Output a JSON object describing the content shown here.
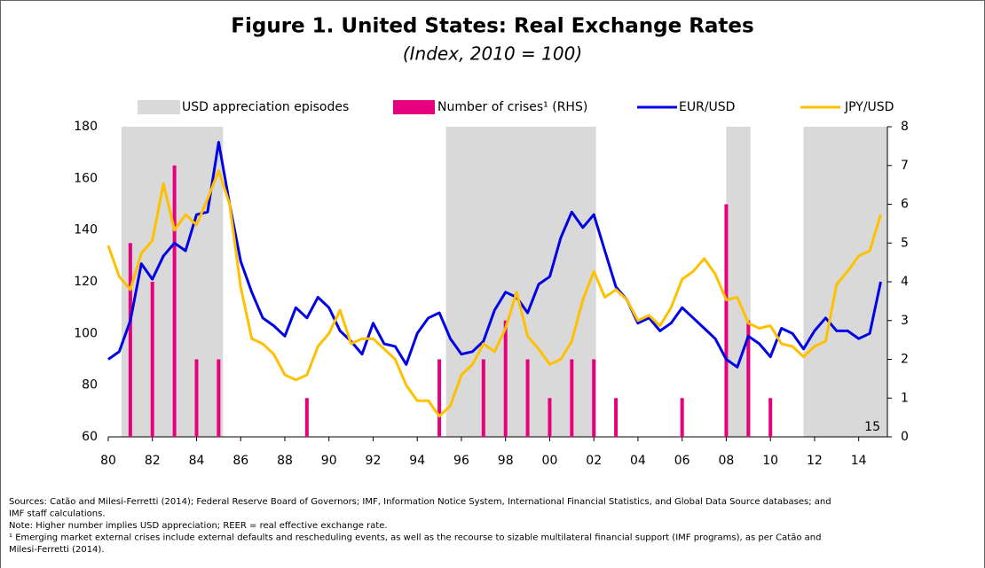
{
  "chart_data": {
    "type": "line",
    "title": "Figure 1. United States: Real Exchange Rates",
    "subtitle": "(Index, 2010 = 100)",
    "shaded_name": "USD appreciation episodes",
    "shaded": [
      [
        1980.6,
        1985.2
      ],
      [
        1995.3,
        2002.1
      ],
      [
        2008.0,
        2009.1
      ],
      [
        2011.5,
        2015.3
      ]
    ],
    "shaded_color": "#d9d9d9",
    "annotation": "15",
    "xlim": [
      1980,
      2015.3
    ],
    "xticks": [
      {
        "value": 1980,
        "label": "80"
      },
      {
        "value": 1982,
        "label": "82"
      },
      {
        "value": 1984,
        "label": "84"
      },
      {
        "value": 1986,
        "label": "86"
      },
      {
        "value": 1988,
        "label": "88"
      },
      {
        "value": 1990,
        "label": "90"
      },
      {
        "value": 1992,
        "label": "92"
      },
      {
        "value": 1994,
        "label": "94"
      },
      {
        "value": 1996,
        "label": "96"
      },
      {
        "value": 1998,
        "label": "98"
      },
      {
        "value": 2000,
        "label": "00"
      },
      {
        "value": 2002,
        "label": "02"
      },
      {
        "value": 2004,
        "label": "04"
      },
      {
        "value": 2006,
        "label": "06"
      },
      {
        "value": 2008,
        "label": "08"
      },
      {
        "value": 2010,
        "label": "10"
      },
      {
        "value": 2012,
        "label": "12"
      },
      {
        "value": 2014,
        "label": "14"
      }
    ],
    "ylim": [
      60,
      180
    ],
    "yticks": [
      60,
      80,
      100,
      120,
      140,
      160,
      180
    ],
    "y2lim": [
      0,
      8
    ],
    "y2ticks": [
      0,
      1,
      2,
      3,
      4,
      5,
      6,
      7,
      8
    ],
    "series": [
      {
        "name": "Number of crises¹ (RHS)",
        "type": "bar",
        "axis": "y2",
        "color": "#e6007e",
        "x": [
          1981,
          1982,
          1983,
          1984,
          1985,
          1989,
          1995,
          1997,
          1998,
          1999,
          2000,
          2001,
          2002,
          2003,
          2006,
          2008,
          2009,
          2010
        ],
        "values": [
          5,
          4,
          7,
          2,
          2,
          1,
          2,
          2,
          3,
          2,
          1,
          2,
          2,
          1,
          1,
          6,
          3,
          1
        ]
      },
      {
        "name": "EUR/USD",
        "type": "line",
        "color": "#0000e6",
        "x": [
          1980,
          1980.5,
          1981,
          1981.5,
          1982,
          1982.5,
          1983,
          1983.5,
          1984,
          1984.5,
          1985,
          1985.5,
          1986,
          1986.5,
          1987,
          1987.5,
          1988,
          1988.5,
          1989,
          1989.5,
          1990,
          1990.5,
          1991,
          1991.5,
          1992,
          1992.5,
          1993,
          1993.5,
          1994,
          1994.5,
          1995,
          1995.5,
          1996,
          1996.5,
          1997,
          1997.5,
          1998,
          1998.5,
          1999,
          1999.5,
          2000,
          2000.5,
          2001,
          2001.5,
          2002,
          2002.5,
          2003,
          2003.5,
          2004,
          2004.5,
          2005,
          2005.5,
          2006,
          2006.5,
          2007,
          2007.5,
          2008,
          2008.5,
          2009,
          2009.5,
          2010,
          2010.5,
          2011,
          2011.5,
          2012,
          2012.5,
          2013,
          2013.5,
          2014,
          2014.5,
          2015
        ],
        "values": [
          90,
          93,
          105,
          127,
          121,
          130,
          135,
          132,
          146,
          147,
          174,
          150,
          128,
          116,
          106,
          103,
          99,
          110,
          106,
          114,
          110,
          101,
          97,
          92,
          104,
          96,
          95,
          88,
          100,
          106,
          108,
          98,
          92,
          93,
          97,
          109,
          116,
          114,
          108,
          119,
          122,
          137,
          147,
          141,
          146,
          132,
          118,
          113,
          104,
          106,
          101,
          104,
          110,
          106,
          102,
          98,
          90,
          87,
          99,
          96,
          91,
          102,
          100,
          94,
          101,
          106,
          101,
          101,
          98,
          100,
          120
        ]
      },
      {
        "name": "JPY/USD",
        "type": "line",
        "color": "#ffc000",
        "x": [
          1980,
          1980.5,
          1981,
          1981.5,
          1982,
          1982.5,
          1983,
          1983.5,
          1984,
          1984.5,
          1985,
          1985.5,
          1986,
          1986.5,
          1987,
          1987.5,
          1988,
          1988.5,
          1989,
          1989.5,
          1990,
          1990.5,
          1991,
          1991.5,
          1992,
          1992.5,
          1993,
          1993.5,
          1994,
          1994.5,
          1995,
          1995.5,
          1996,
          1996.5,
          1997,
          1997.5,
          1998,
          1998.5,
          1999,
          1999.5,
          2000,
          2000.5,
          2001,
          2001.5,
          2002,
          2002.5,
          2003,
          2003.5,
          2004,
          2004.5,
          2005,
          2005.5,
          2006,
          2006.5,
          2007,
          2007.5,
          2008,
          2008.5,
          2009,
          2009.5,
          2010,
          2010.5,
          2011,
          2011.5,
          2012,
          2012.5,
          2013,
          2013.5,
          2014,
          2014.5,
          2015
        ],
        "values": [
          134,
          122,
          117,
          131,
          136,
          158,
          140,
          146,
          142,
          152,
          163,
          150,
          118,
          98,
          96,
          92,
          84,
          82,
          84,
          95,
          100,
          109,
          96,
          98,
          98,
          94,
          90,
          80,
          74,
          74,
          68,
          72,
          84,
          88,
          96,
          93,
          102,
          116,
          99,
          94,
          88,
          90,
          97,
          113,
          124,
          114,
          117,
          113,
          105,
          107,
          103,
          110,
          121,
          124,
          129,
          123,
          113,
          114,
          104,
          102,
          103,
          96,
          95,
          91,
          95,
          97,
          119,
          124,
          130,
          132,
          146
        ]
      }
    ],
    "notes": [
      "Sources: Catão and Milesi-Ferretti (2014); Federal Reserve Board of Governors; IMF, Information Notice System, International Financial Statistics, and Global Data Source databases; and",
      "IMF staff calculations.",
      "Note: Higher number implies USD appreciation; REER = real effective exchange rate.",
      "¹ Emerging market external crises include external defaults and rescheduling events, as well as the recourse to sizable multilateral financial support (IMF programs), as per Catão and",
      "Milesi-Ferretti (2014)."
    ]
  }
}
